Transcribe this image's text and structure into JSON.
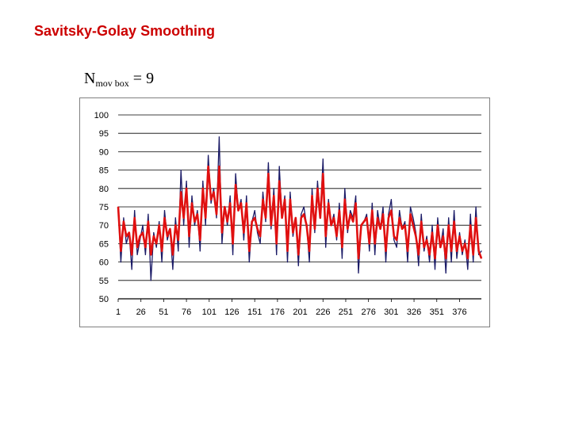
{
  "slide": {
    "title": "Savitsky-Golay Smoothing",
    "formula": {
      "main": "N",
      "subscript": "mov box",
      "rest": "= 9"
    }
  },
  "chart_data": {
    "type": "line",
    "ylim": [
      50,
      100
    ],
    "y_ticks": [
      100,
      95,
      90,
      85,
      80,
      75,
      70,
      65,
      60,
      55,
      50
    ],
    "x_range": [
      1,
      400
    ],
    "x_ticks": [
      1,
      26,
      51,
      76,
      101,
      126,
      151,
      176,
      201,
      226,
      251,
      276,
      301,
      326,
      351,
      376
    ],
    "grid": true,
    "series": [
      {
        "color": "#1a1a66",
        "style": "raw",
        "x": [
          1,
          4,
          7,
          10,
          13,
          16,
          19,
          22,
          25,
          28,
          31,
          34,
          37,
          40,
          43,
          46,
          49,
          52,
          55,
          58,
          61,
          64,
          67,
          70,
          73,
          76,
          79,
          82,
          85,
          88,
          91,
          94,
          97,
          100,
          103,
          106,
          109,
          112,
          115,
          118,
          121,
          124,
          127,
          130,
          133,
          136,
          139,
          142,
          145,
          148,
          151,
          154,
          157,
          160,
          163,
          166,
          169,
          172,
          175,
          178,
          181,
          184,
          187,
          190,
          193,
          196,
          199,
          202,
          205,
          208,
          211,
          214,
          217,
          220,
          223,
          226,
          229,
          232,
          235,
          238,
          241,
          244,
          247,
          250,
          253,
          256,
          259,
          262,
          265,
          268,
          271,
          274,
          277,
          280,
          283,
          286,
          289,
          292,
          295,
          298,
          301,
          304,
          307,
          310,
          313,
          316,
          319,
          322,
          325,
          328,
          331,
          334,
          337,
          340,
          343,
          346,
          349,
          352,
          355,
          358,
          361,
          364,
          367,
          370,
          373,
          376,
          379,
          382,
          385,
          388,
          391,
          394,
          397,
          400
        ],
        "values": [
          75,
          60,
          72,
          65,
          68,
          58,
          74,
          62,
          66,
          70,
          62,
          73,
          55,
          68,
          64,
          71,
          60,
          74,
          66,
          69,
          58,
          72,
          63,
          85,
          70,
          82,
          64,
          78,
          70,
          74,
          63,
          82,
          70,
          89,
          76,
          80,
          72,
          94,
          65,
          75,
          70,
          78,
          62,
          84,
          74,
          77,
          66,
          78,
          60,
          71,
          74,
          68,
          65,
          79,
          71,
          87,
          69,
          80,
          62,
          86,
          72,
          78,
          60,
          79,
          67,
          72,
          59,
          73,
          75,
          70,
          60,
          80,
          68,
          82,
          72,
          88,
          64,
          77,
          70,
          73,
          66,
          76,
          61,
          80,
          68,
          74,
          72,
          78,
          57,
          70,
          71,
          73,
          63,
          76,
          62,
          74,
          69,
          75,
          60,
          73,
          77,
          66,
          64,
          74,
          69,
          71,
          60,
          75,
          72,
          68,
          59,
          73,
          63,
          67,
          60,
          70,
          58,
          72,
          64,
          69,
          57,
          72,
          60,
          74,
          61,
          68,
          62,
          66,
          58,
          73,
          60,
          75,
          62,
          63
        ],
        "x_full_note": "raw noisy data"
      },
      {
        "color": "#e01010",
        "style": "smoothed",
        "x": [
          1,
          4,
          7,
          10,
          13,
          16,
          19,
          22,
          25,
          28,
          31,
          34,
          37,
          40,
          43,
          46,
          49,
          52,
          55,
          58,
          61,
          64,
          67,
          70,
          73,
          76,
          79,
          82,
          85,
          88,
          91,
          94,
          97,
          100,
          103,
          106,
          109,
          112,
          115,
          118,
          121,
          124,
          127,
          130,
          133,
          136,
          139,
          142,
          145,
          148,
          151,
          154,
          157,
          160,
          163,
          166,
          169,
          172,
          175,
          178,
          181,
          184,
          187,
          190,
          193,
          196,
          199,
          202,
          205,
          208,
          211,
          214,
          217,
          220,
          223,
          226,
          229,
          232,
          235,
          238,
          241,
          244,
          247,
          250,
          253,
          256,
          259,
          262,
          265,
          268,
          271,
          274,
          277,
          280,
          283,
          286,
          289,
          292,
          295,
          298,
          301,
          304,
          307,
          310,
          313,
          316,
          319,
          322,
          325,
          328,
          331,
          334,
          337,
          340,
          343,
          346,
          349,
          352,
          355,
          358,
          361,
          364,
          367,
          370,
          373,
          376,
          379,
          382,
          385,
          388,
          391,
          394,
          397,
          400
        ],
        "values": [
          75,
          63,
          71,
          67,
          68,
          62,
          72,
          64,
          67,
          68,
          64,
          71,
          62,
          67,
          65,
          70,
          63,
          72,
          67,
          69,
          62,
          70,
          66,
          79,
          72,
          80,
          67,
          76,
          71,
          73,
          66,
          80,
          72,
          86,
          77,
          79,
          73,
          86,
          68,
          75,
          71,
          76,
          65,
          81,
          74,
          76,
          68,
          76,
          63,
          71,
          72,
          69,
          67,
          77,
          72,
          84,
          70,
          78,
          65,
          82,
          72,
          77,
          63,
          77,
          68,
          72,
          62,
          72,
          73,
          70,
          63,
          78,
          69,
          80,
          72,
          84,
          67,
          76,
          70,
          72,
          67,
          74,
          64,
          77,
          69,
          73,
          71,
          76,
          61,
          70,
          71,
          72,
          65,
          74,
          65,
          72,
          69,
          73,
          63,
          72,
          74,
          67,
          66,
          72,
          69,
          70,
          63,
          73,
          70,
          67,
          62,
          71,
          64,
          66,
          62,
          68,
          61,
          70,
          64,
          67,
          61,
          70,
          63,
          71,
          63,
          67,
          63,
          65,
          61,
          70,
          62,
          72,
          63,
          61
        ]
      }
    ]
  }
}
